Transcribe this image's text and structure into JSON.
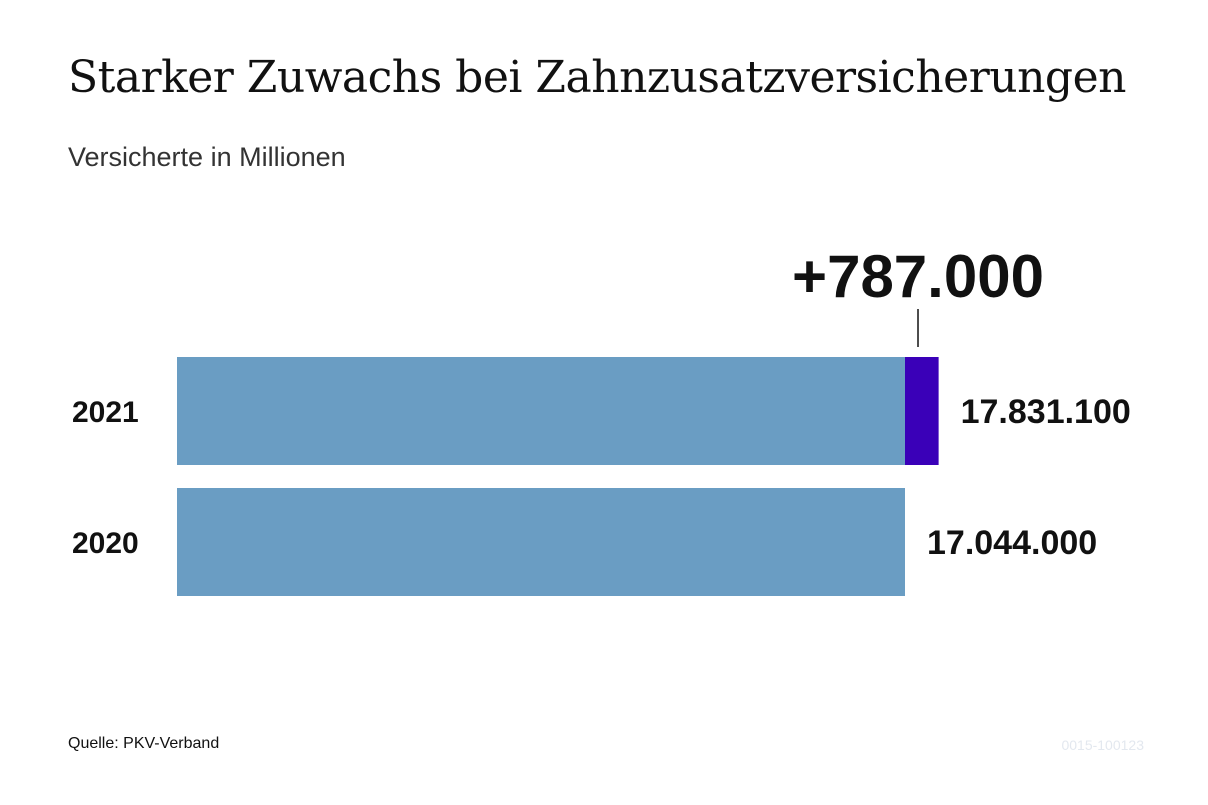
{
  "header": {
    "title": "Starker Zuwachs bei Zahnzusatzversicherungen",
    "subtitle": "Versicherte in Millionen"
  },
  "footer": {
    "source": "Quelle: PKV-Verband",
    "code": "0015-100123"
  },
  "colors": {
    "base_bar": "#6a9dc3",
    "increase_segment": "#3a00b8",
    "text": "#111111"
  },
  "chart_data": {
    "type": "bar",
    "orientation": "horizontal",
    "categories": [
      "2021",
      "2020"
    ],
    "values": [
      17831100,
      17044000
    ],
    "value_labels": [
      "17.831.100",
      "17.044.000"
    ],
    "increase": {
      "category": "2021",
      "value": 787000,
      "label": "+787.000"
    },
    "title": "Starker Zuwachs bei Zahnzusatzversicherungen",
    "subtitle": "Versicherte in Millionen",
    "xlabel": "",
    "ylabel": "",
    "grid": false,
    "legend": "none"
  }
}
